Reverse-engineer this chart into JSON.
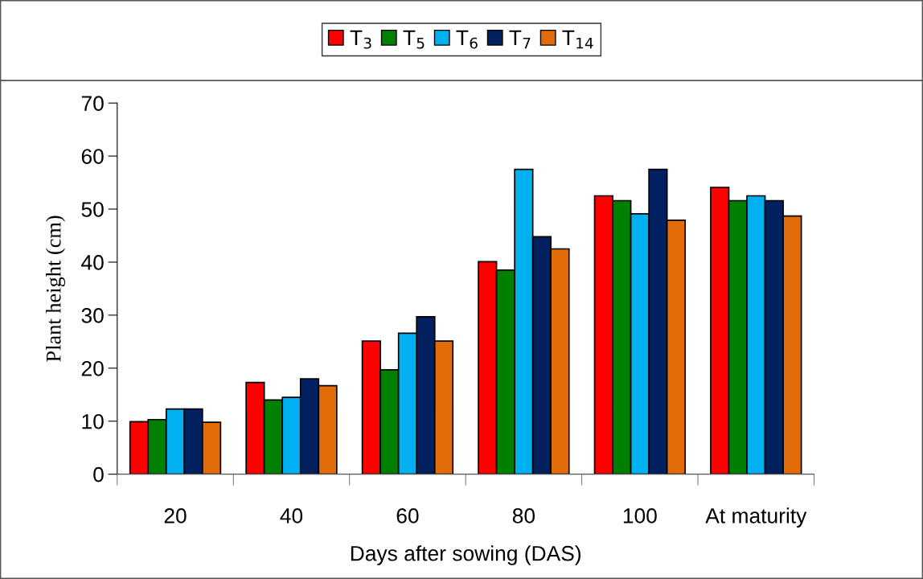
{
  "chart_data": {
    "type": "bar",
    "xlabel": "Days after sowing (DAS)",
    "ylabel": "Plant height (cm)",
    "categories": [
      "20",
      "40",
      "60",
      "80",
      "100",
      "At maturity"
    ],
    "series": [
      {
        "name": "T$_{3}$",
        "color": "#ff0000",
        "values": [
          9.9,
          17.3,
          25.1,
          40.1,
          52.5,
          54.1
        ]
      },
      {
        "name": "T$_{5}$",
        "color": "#008000",
        "values": [
          10.3,
          14.0,
          19.7,
          38.5,
          51.6,
          51.6
        ]
      },
      {
        "name": "T$_{6}$",
        "color": "#00b0f0",
        "values": [
          12.3,
          14.5,
          26.6,
          57.5,
          49.1,
          52.5
        ]
      },
      {
        "name": "T$_{7}$",
        "color": "#002060",
        "values": [
          12.3,
          18.0,
          29.7,
          44.8,
          57.5,
          51.6
        ]
      },
      {
        "name": "T$_{14}$",
        "color": "#e36c09",
        "values": [
          9.8,
          16.7,
          25.1,
          42.5,
          47.9,
          48.7
        ]
      }
    ],
    "ylim": [
      0,
      70
    ],
    "yticks": [
      0,
      10,
      20,
      30,
      40,
      50,
      60,
      70
    ],
    "grid": false,
    "legend": "top"
  }
}
